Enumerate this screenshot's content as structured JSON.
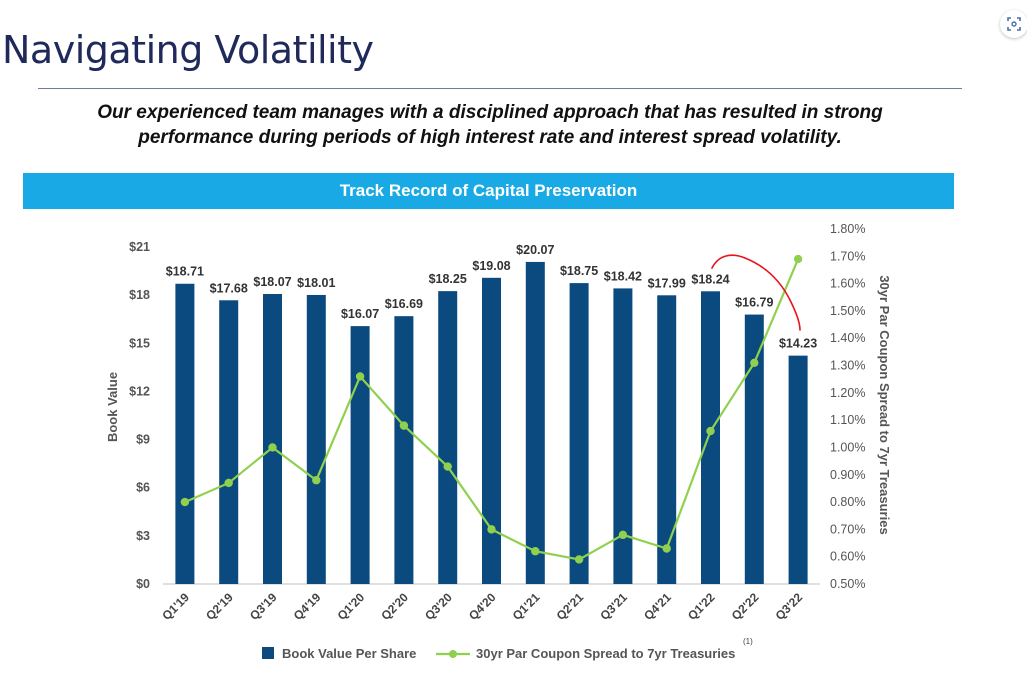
{
  "page": {
    "title": "Navigating Volatility",
    "subtitle_line1": "Our experienced team manages with a disciplined approach that has resulted in strong",
    "subtitle_line2": "performance during periods of high interest rate and interest spread volatility.",
    "banner": "Track Record of Capital Preservation",
    "footnote_marker": "(1)",
    "icon": "scan-icon"
  },
  "colors": {
    "bar": "#0b4a7e",
    "line": "#8fd14f",
    "banner": "#19a9e5",
    "annotation": "#e8141b"
  },
  "chart_data": {
    "type": "bar",
    "title": "Track Record of Capital Preservation",
    "categories": [
      "Q1'19",
      "Q2'19",
      "Q3'19",
      "Q4'19",
      "Q1'20",
      "Q2'20",
      "Q3'20",
      "Q4'20",
      "Q1'21",
      "Q2'21",
      "Q3'21",
      "Q4'21",
      "Q1'22",
      "Q2'22",
      "Q3'22"
    ],
    "ylabel": "Book Value",
    "y2label": "30yr Par Coupon Spread to 7yr Treasuries",
    "ylim": [
      0,
      21
    ],
    "y2lim": [
      0.5,
      1.8
    ],
    "yticks": [
      "$0",
      "$3",
      "$6",
      "$9",
      "$12",
      "$15",
      "$18",
      "$21"
    ],
    "y2ticks": [
      "0.50%",
      "0.60%",
      "0.70%",
      "0.80%",
      "0.90%",
      "1.00%",
      "1.10%",
      "1.20%",
      "1.30%",
      "1.40%",
      "1.50%",
      "1.60%",
      "1.70%",
      "1.80%"
    ],
    "series": [
      {
        "name": "Book Value Per Share",
        "type": "bar",
        "axis": "left",
        "values": [
          18.71,
          17.68,
          18.07,
          18.01,
          16.07,
          16.69,
          18.25,
          19.08,
          20.07,
          18.75,
          18.42,
          17.99,
          18.24,
          16.79,
          14.23
        ],
        "labels": [
          "$18.71",
          "$17.68",
          "$18.07",
          "$18.01",
          "$16.07",
          "$16.69",
          "$18.25",
          "$19.08",
          "$20.07",
          "$18.75",
          "$18.42",
          "$17.99",
          "$18.24",
          "$16.79",
          "$14.23"
        ]
      },
      {
        "name": "30yr Par Coupon Spread to 7yr Treasuries",
        "type": "line",
        "axis": "right",
        "values": [
          0.8,
          0.87,
          1.0,
          0.88,
          1.26,
          1.08,
          0.93,
          0.7,
          0.62,
          0.59,
          0.68,
          0.63,
          1.06,
          1.31,
          1.69
        ]
      }
    ],
    "legend": "bottom-center",
    "annotation": "hand-drawn red curve above Q1'22 to Q3'22 bars"
  }
}
